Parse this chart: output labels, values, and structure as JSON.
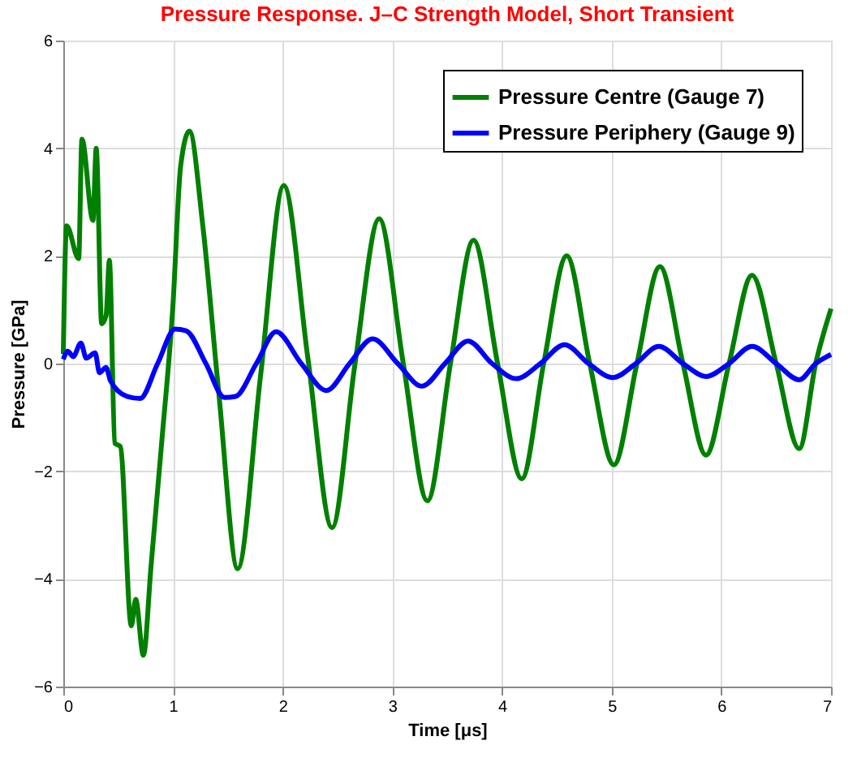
{
  "chart_data": {
    "type": "line",
    "title": "Pressure Response. J–C Strength Model, Short Transient",
    "xlabel": "Time [μs]",
    "ylabel": "Pressure [GPa]",
    "xlim": [
      0,
      7
    ],
    "ylim": [
      -6,
      6
    ],
    "xticks": [
      0,
      1,
      2,
      3,
      4,
      5,
      6,
      7
    ],
    "yticks": [
      -6,
      -4,
      -2,
      0,
      2,
      4,
      6
    ],
    "grid": true,
    "legend": "top right",
    "line_style": "solid",
    "marker": "none",
    "series": [
      {
        "name": "Pressure Centre (Gauge 7)",
        "color": "#008000",
        "x": [
          0,
          0.03,
          0.14,
          0.17,
          0.27,
          0.3,
          0.35,
          0.39,
          0.42,
          0.47,
          0.52,
          0.62,
          0.66,
          0.73,
          0.8,
          0.9,
          1.0,
          1.07,
          1.15,
          1.27,
          1.42,
          1.59,
          1.8,
          2.01,
          2.23,
          2.45,
          2.66,
          2.88,
          3.1,
          3.32,
          3.53,
          3.74,
          3.96,
          4.18,
          4.38,
          4.59,
          4.8,
          5.02,
          5.23,
          5.44,
          5.65,
          5.86,
          6.07,
          6.28,
          6.5,
          6.71,
          6.86,
          7.0
        ],
        "values": [
          0.18,
          2.56,
          1.95,
          4.17,
          2.66,
          4.0,
          0.74,
          0.89,
          1.92,
          -1.48,
          -1.54,
          -4.87,
          -4.38,
          -5.42,
          -3.76,
          -1.4,
          1.09,
          3.67,
          4.32,
          2.6,
          -0.6,
          -3.81,
          -0.2,
          3.31,
          0.1,
          -3.05,
          0.0,
          2.69,
          0.0,
          -2.55,
          0.0,
          2.29,
          0.0,
          -2.14,
          0.0,
          2.0,
          0.0,
          -1.88,
          0.0,
          1.8,
          0.0,
          -1.7,
          0.0,
          1.64,
          0.0,
          -1.58,
          0.0,
          1.02
        ]
      },
      {
        "name": "Pressure Periphery (Gauge 9)",
        "color": "#0000ff",
        "x": [
          0,
          0.04,
          0.09,
          0.16,
          0.21,
          0.29,
          0.33,
          0.39,
          0.43,
          0.58,
          0.7,
          0.86,
          1.02,
          1.12,
          1.3,
          1.47,
          1.57,
          1.76,
          1.94,
          2.17,
          2.4,
          2.61,
          2.82,
          3.05,
          3.27,
          3.48,
          3.69,
          3.91,
          4.13,
          4.35,
          4.57,
          4.79,
          5.01,
          5.22,
          5.43,
          5.65,
          5.86,
          6.07,
          6.28,
          6.5,
          6.71,
          6.86,
          7.0
        ],
        "values": [
          0.08,
          0.23,
          0.13,
          0.38,
          0.1,
          0.2,
          -0.17,
          -0.07,
          -0.32,
          -0.61,
          -0.65,
          0.0,
          0.64,
          0.61,
          0.0,
          -0.63,
          -0.61,
          0.0,
          0.59,
          0.0,
          -0.5,
          0.0,
          0.46,
          0.0,
          -0.42,
          0.0,
          0.42,
          0.0,
          -0.28,
          0.0,
          0.35,
          0.0,
          -0.26,
          0.0,
          0.32,
          0.0,
          -0.24,
          0.0,
          0.32,
          0.0,
          -0.3,
          0.0,
          0.17
        ]
      }
    ]
  }
}
